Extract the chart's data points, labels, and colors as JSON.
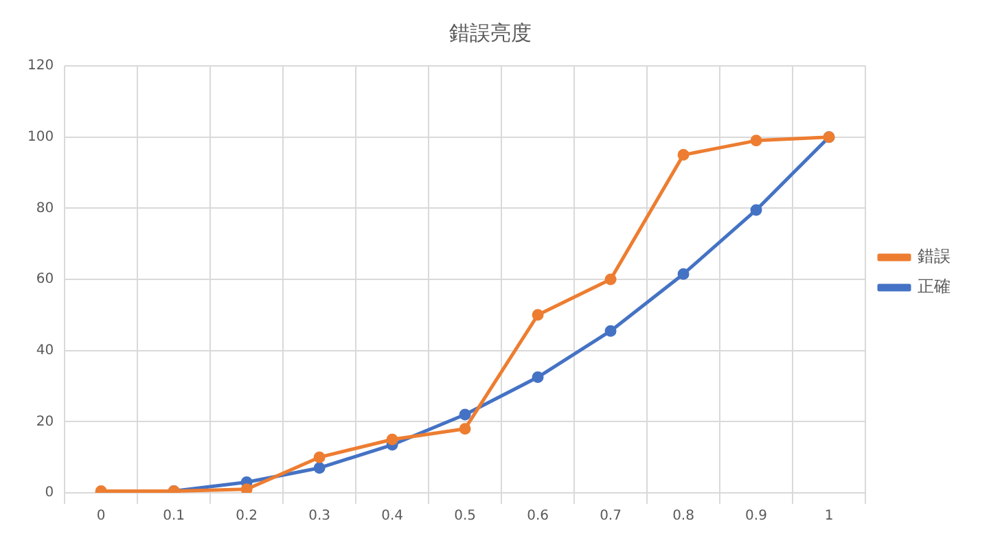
{
  "chart_data": {
    "type": "line",
    "title": "錯誤亮度",
    "categories": [
      "0",
      "0.1",
      "0.2",
      "0.3",
      "0.4",
      "0.5",
      "0.6",
      "0.7",
      "0.8",
      "0.9",
      "1"
    ],
    "series": [
      {
        "name": "正確",
        "color": "#4472c4",
        "values": [
          0,
          0.5,
          3,
          7,
          13.5,
          22,
          32.5,
          45.5,
          61.5,
          79.5,
          100
        ]
      },
      {
        "name": "錯誤",
        "color": "#ed7d31",
        "values": [
          0.5,
          0.5,
          1,
          10,
          15,
          18,
          50,
          60,
          95,
          99,
          100
        ]
      }
    ],
    "ylim": [
      0,
      120
    ],
    "yticks": [
      0,
      20,
      40,
      60,
      80,
      100,
      120
    ],
    "grid": true,
    "legend": "right",
    "marker": "circle",
    "line_style": "solid"
  }
}
